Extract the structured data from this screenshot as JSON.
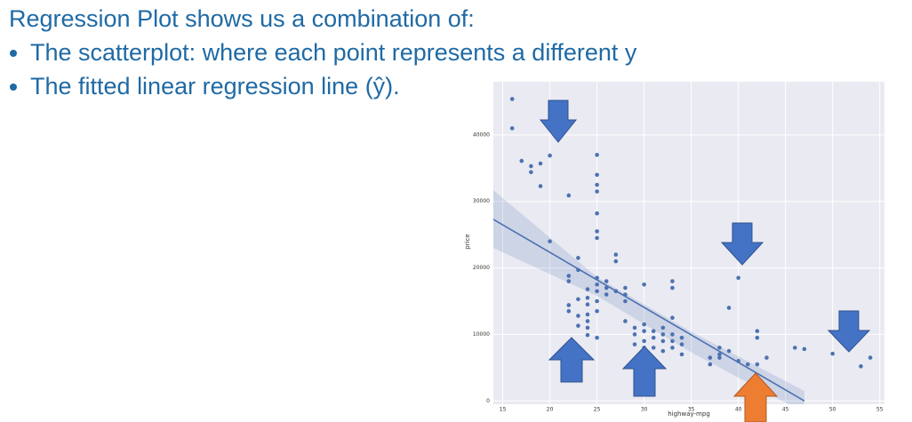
{
  "slide": {
    "title": "Regression Plot shows us a combination of:",
    "bullets": [
      "The scatterplot: where each point represents a different y",
      "The fitted linear regression line (ŷ)."
    ]
  },
  "chart_data": {
    "type": "scatter",
    "xlabel": "highway-mpg",
    "ylabel": "price",
    "xlim": [
      14,
      55.5
    ],
    "ylim": [
      -500,
      48000
    ],
    "xticks": [
      15,
      20,
      25,
      30,
      35,
      40,
      45,
      50,
      55
    ],
    "yticks": [
      0,
      10000,
      20000,
      30000,
      40000
    ],
    "grid": true,
    "background": "#eaeaf2",
    "points": {
      "color": "#4c72b0",
      "x": [
        16,
        16,
        17,
        18,
        18,
        19,
        19,
        20,
        20,
        22,
        22,
        22,
        22,
        22,
        23,
        23,
        23,
        23,
        23,
        24,
        24,
        24,
        24,
        24,
        24,
        24,
        25,
        25,
        25,
        25,
        25,
        25,
        25,
        25,
        25,
        25,
        25,
        25,
        25,
        26,
        26,
        26,
        27,
        27,
        27,
        28,
        28,
        28,
        28,
        29,
        29,
        29,
        30,
        30,
        30,
        30,
        30,
        30,
        30,
        31,
        31,
        31,
        31,
        32,
        32,
        32,
        32,
        33,
        33,
        33,
        33,
        33,
        33,
        34,
        34,
        34,
        37,
        37,
        38,
        38,
        38,
        39,
        39,
        40,
        40,
        41,
        42,
        42,
        42,
        43,
        46,
        47,
        50,
        53,
        54
      ],
      "y": [
        45400,
        41000,
        36100,
        35300,
        34400,
        35700,
        32300,
        36900,
        24000,
        30900,
        18800,
        18000,
        14400,
        13500,
        21500,
        19700,
        15300,
        12800,
        11300,
        16800,
        15500,
        14500,
        13000,
        12000,
        11000,
        9900,
        37000,
        34000,
        32500,
        31500,
        28200,
        25500,
        24500,
        18500,
        17500,
        16500,
        15000,
        13500,
        9500,
        18000,
        17000,
        16000,
        22000,
        21000,
        16500,
        17000,
        16000,
        15000,
        12000,
        11000,
        10000,
        8500,
        17500,
        11500,
        10500,
        9000,
        8000,
        7000,
        6500,
        10500,
        9500,
        8000,
        6000,
        11000,
        10000,
        9000,
        7500,
        18000,
        17000,
        12500,
        10000,
        9000,
        8000,
        9500,
        8500,
        7000,
        6500,
        5500,
        8000,
        7000,
        6500,
        14000,
        7500,
        18500,
        6000,
        5500,
        10500,
        9500,
        5500,
        6500,
        8000,
        7800,
        7100,
        5200,
        6500
      ]
    },
    "fit": {
      "color": "#4c72b0",
      "x": [
        14,
        47
      ],
      "y": [
        27300,
        0
      ]
    },
    "band": {
      "color": "#4c72b0",
      "x": [
        14,
        25,
        35,
        47
      ],
      "upper": [
        31700,
        18600,
        10400,
        1500
      ],
      "lower": [
        23000,
        15800,
        7300,
        -1800
      ]
    }
  }
}
